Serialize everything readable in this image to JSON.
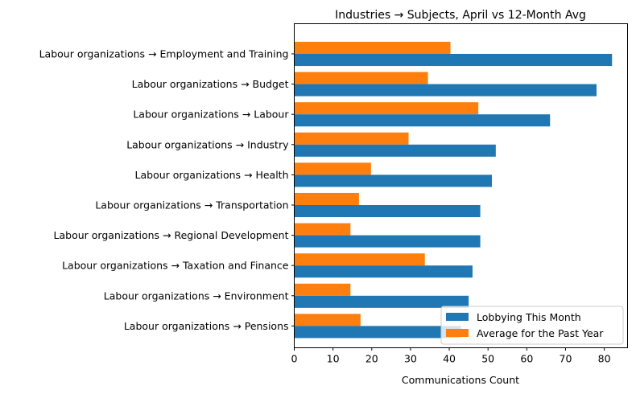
{
  "chart_data": {
    "type": "bar",
    "orientation": "horizontal",
    "title": "Industries → Subjects, April vs 12-Month Avg",
    "xlabel": "Communications Count",
    "ylabel": "",
    "xlim": [
      0,
      86
    ],
    "xticks": [
      0,
      10,
      20,
      30,
      40,
      50,
      60,
      70,
      80
    ],
    "categories": [
      "Labour organizations → Employment and Training",
      "Labour organizations → Budget",
      "Labour organizations → Labour",
      "Labour organizations → Industry",
      "Labour organizations → Health",
      "Labour organizations → Transportation",
      "Labour organizations → Regional Development",
      "Labour organizations → Taxation and Finance",
      "Labour organizations → Environment",
      "Labour organizations → Pensions"
    ],
    "series": [
      {
        "name": "Lobbying This Month",
        "color": "#1f77b4",
        "values": [
          82,
          78,
          66,
          52,
          51,
          48,
          48,
          46,
          45,
          43
        ]
      },
      {
        "name": "Average for the Past Year",
        "color": "#ff7f0e",
        "values": [
          40.3,
          34.5,
          47.5,
          29.5,
          19.8,
          16.7,
          14.5,
          33.7,
          14.5,
          17.1
        ]
      }
    ],
    "legend": "lower-right",
    "grid": false
  }
}
